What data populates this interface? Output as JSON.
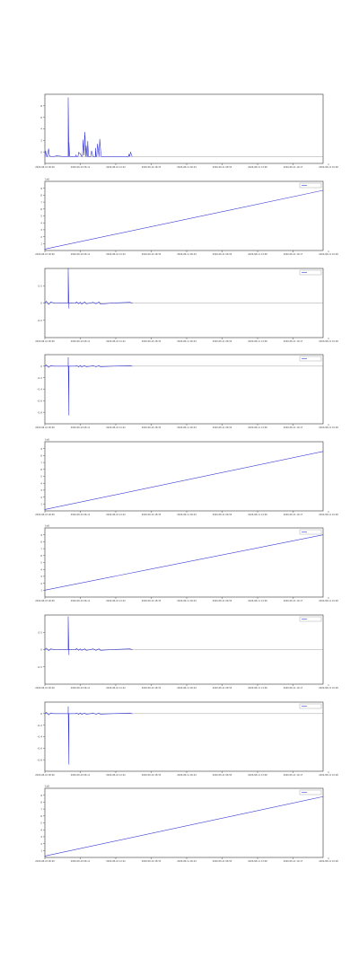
{
  "colors": {
    "line": "#3b3bd8",
    "axis": "#333333",
    "grid": "#d6d6d6",
    "zero": "#888888",
    "background": "#ffffff"
  },
  "x_ticks": [
    "2020-08-10 00:00",
    "2020-08-10 06:11",
    "2020-08-10 12:22",
    "2020-08-10 18:33",
    "2020-08-11 00:44",
    "2020-08-11 06:55",
    "2020-08-11 13:06",
    "2020-08-11 19:17",
    "2020-08-12 01:28"
  ],
  "chart_data": [
    {
      "type": "line",
      "title": "",
      "offset_label": "",
      "ylim": [
        -1,
        9
      ],
      "y_ticks": [
        "0",
        "2",
        "4",
        "6",
        "8"
      ],
      "legend": "",
      "grid": false,
      "series": [
        {
          "name": "",
          "x": [
            0,
            0.1,
            0.2,
            0.3,
            0.5,
            0.6,
            0.8,
            1.0,
            1.2,
            1.6,
            2.0,
            2.3,
            2.5,
            3.1,
            3.1,
            3.2,
            3.2,
            3.3,
            3.4,
            3.6,
            3.8,
            4.1,
            4.15,
            4.2,
            4.4,
            4.5,
            4.7,
            4.9,
            4.95,
            5.0,
            5.1,
            5.2,
            5.25,
            5.3,
            5.35,
            5.45,
            5.5,
            5.6,
            5.65,
            5.7,
            5.8,
            6.1,
            6.2,
            6.4,
            6.7,
            6.75,
            6.8,
            6.9,
            7.0,
            7.2,
            7.3,
            7.4,
            7.5,
            8.0,
            8.5,
            9.0,
            9.5,
            10.0,
            10.5,
            11.0,
            11.1,
            11.2,
            11.25,
            11.4,
            11.6
          ],
          "values": [
            0,
            0.8,
            0.2,
            0,
            1.1,
            0.1,
            0,
            0,
            0,
            0.1,
            0.05,
            0,
            0,
            0,
            8.5,
            0,
            2,
            0,
            0,
            0,
            0,
            0,
            0.2,
            0,
            0,
            0.6,
            0.4,
            0,
            0,
            0.3,
            2.4,
            0.2,
            1.5,
            3.5,
            2.8,
            0,
            1.5,
            0,
            0,
            2.2,
            0,
            0,
            0.8,
            0,
            0,
            1.2,
            0,
            0,
            1.8,
            0,
            2.5,
            1,
            0,
            0,
            0,
            0,
            0,
            0,
            0,
            0,
            0,
            0.3,
            0,
            0.6,
            0
          ]
        }
      ]
    },
    {
      "type": "line",
      "title": "",
      "offset_label": "1e8",
      "ylim": [
        0,
        10
      ],
      "y_ticks": [
        "1",
        "2",
        "3",
        "4",
        "5",
        "6",
        "7",
        "8",
        "9"
      ],
      "legend": "",
      "grid": false,
      "series": [
        {
          "name": "",
          "x": [
            0,
            37
          ],
          "values": [
            0.2,
            8.7
          ]
        }
      ]
    },
    {
      "type": "line",
      "title": "",
      "offset_label": "",
      "ylim": [
        -1,
        1
      ],
      "y_ticks": [
        "-0.5",
        "0",
        "0.5"
      ],
      "legend": "",
      "grid": false,
      "series": [
        {
          "name": "",
          "x": [
            0,
            0.2,
            0.5,
            0.8,
            1.2,
            2.0,
            2.5,
            3.1,
            3.1,
            3.2,
            3.2,
            3.3,
            3.5,
            4.1,
            4.2,
            4.5,
            4.7,
            4.9,
            5.1,
            5.3,
            5.5,
            6.1,
            6.4,
            6.8,
            7.2,
            7.4,
            9.0,
            11.3,
            11.6
          ],
          "values": [
            0,
            0.05,
            -0.04,
            0.03,
            0,
            0,
            0,
            0,
            1,
            -0.15,
            0,
            0,
            0,
            0,
            0.03,
            -0.02,
            0.02,
            -0.03,
            0,
            0.03,
            -0.02,
            0,
            0.02,
            -0.02,
            0.03,
            -0.03,
            0,
            0.02,
            0
          ]
        }
      ]
    },
    {
      "type": "line",
      "title": "",
      "offset_label": "",
      "ylim": [
        -1,
        0.2
      ],
      "y_ticks": [
        "-0.8",
        "-0.6",
        "-0.4",
        "-0.2",
        "0"
      ],
      "legend": "",
      "grid": false,
      "series": [
        {
          "name": "",
          "x": [
            0,
            0.2,
            0.5,
            0.8,
            1.2,
            2.0,
            2.5,
            3.1,
            3.1,
            3.2,
            3.2,
            3.3,
            3.5,
            4.1,
            4.2,
            4.5,
            4.7,
            4.9,
            5.1,
            5.3,
            5.5,
            6.1,
            6.4,
            6.8,
            7.2,
            7.4,
            9.0,
            11.3,
            11.6
          ],
          "values": [
            0,
            0.02,
            -0.02,
            0.01,
            0,
            0,
            0,
            0,
            0.15,
            -0.85,
            0,
            0,
            0,
            0,
            0.01,
            -0.01,
            0.01,
            -0.01,
            0,
            0.01,
            -0.01,
            0,
            0.01,
            -0.01,
            0.01,
            -0.01,
            0,
            0.01,
            0
          ]
        }
      ]
    },
    {
      "type": "line",
      "title": "",
      "offset_label": "1e8",
      "ylim": [
        0,
        10
      ],
      "y_ticks": [
        "1",
        "2",
        "3",
        "4",
        "5",
        "6",
        "7",
        "8",
        "9"
      ],
      "legend": "",
      "grid": false,
      "series": [
        {
          "name": "",
          "x": [
            0,
            37
          ],
          "values": [
            0.2,
            8.6
          ]
        }
      ]
    },
    {
      "type": "line",
      "title": "",
      "offset_label": "1e8",
      "ylim": [
        0,
        10
      ],
      "y_ticks": [
        "1",
        "2",
        "3",
        "4",
        "5",
        "6",
        "7",
        "8",
        "9"
      ],
      "legend": "",
      "grid": false,
      "series": [
        {
          "name": "",
          "x": [
            0,
            37
          ],
          "values": [
            1,
            9
          ]
        }
      ]
    },
    {
      "type": "line",
      "title": "",
      "offset_label": "",
      "ylim": [
        -1,
        1
      ],
      "y_ticks": [
        "-0.5",
        "0",
        "0.5"
      ],
      "legend": "",
      "grid": false,
      "series": [
        {
          "name": "",
          "x": [
            0,
            0.2,
            0.5,
            0.8,
            1.2,
            2.0,
            2.5,
            3.1,
            3.1,
            3.2,
            3.2,
            3.3,
            3.5,
            4.1,
            4.2,
            4.5,
            4.7,
            4.9,
            5.1,
            5.3,
            5.5,
            6.1,
            6.4,
            6.8,
            7.2,
            7.4,
            9.0,
            11.3,
            11.6
          ],
          "values": [
            0,
            0.04,
            -0.03,
            0.02,
            0,
            0,
            0,
            0,
            0.95,
            -0.15,
            0,
            0,
            0,
            0,
            0.03,
            -0.02,
            0.02,
            -0.02,
            0,
            0.02,
            -0.02,
            0,
            0.02,
            -0.02,
            0.02,
            -0.02,
            0,
            0.02,
            0
          ]
        }
      ]
    },
    {
      "type": "line",
      "title": "",
      "offset_label": "",
      "ylim": [
        -1,
        0.2
      ],
      "y_ticks": [
        "-0.8",
        "-0.6",
        "-0.4",
        "-0.2",
        "0"
      ],
      "legend": "",
      "grid": false,
      "series": [
        {
          "name": "",
          "x": [
            0,
            0.2,
            0.5,
            0.8,
            1.2,
            2.0,
            2.5,
            3.1,
            3.1,
            3.2,
            3.2,
            3.3,
            3.5,
            4.1,
            4.2,
            4.5,
            4.7,
            4.9,
            5.1,
            5.3,
            5.5,
            6.1,
            6.4,
            6.8,
            7.2,
            7.4,
            9.0,
            11.3,
            11.6
          ],
          "values": [
            0,
            0.02,
            -0.02,
            0.01,
            0,
            0,
            0,
            0,
            0.12,
            -0.88,
            0,
            0,
            0,
            0,
            0.01,
            -0.01,
            0.01,
            -0.01,
            0,
            0.01,
            -0.01,
            0,
            0.01,
            -0.01,
            0.01,
            -0.01,
            0,
            0.01,
            0
          ]
        }
      ]
    },
    {
      "type": "line",
      "title": "",
      "offset_label": "1e8",
      "ylim": [
        0,
        10
      ],
      "y_ticks": [
        "1",
        "2",
        "3",
        "4",
        "5",
        "6",
        "7",
        "8",
        "9"
      ],
      "legend": "",
      "grid": false,
      "series": [
        {
          "name": "",
          "x": [
            0,
            37
          ],
          "values": [
            0.2,
            8.8
          ]
        }
      ]
    }
  ]
}
